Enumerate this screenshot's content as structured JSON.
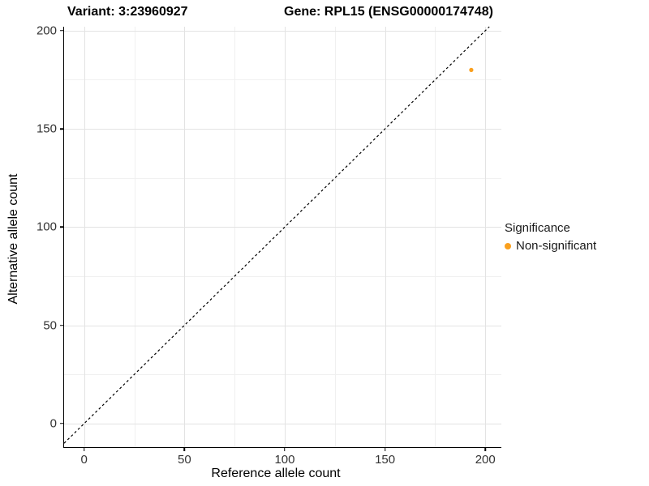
{
  "titles": {
    "variant": "Variant: 3:23960927",
    "gene": "Gene: RPL15 (ENSG00000174748)"
  },
  "chart_data": {
    "type": "scatter",
    "xlabel": "Reference allele count",
    "ylabel": "Alternative allele count",
    "xlim": [
      -10,
      208
    ],
    "ylim": [
      -12,
      202
    ],
    "x_ticks": [
      0,
      50,
      100,
      150,
      200
    ],
    "y_ticks": [
      0,
      50,
      100,
      150,
      200
    ],
    "x_minor_ticks": [
      25,
      75,
      125,
      175
    ],
    "y_minor_ticks": [
      25,
      75,
      125,
      175
    ],
    "grid": true,
    "identity_line": {
      "equation": "y = x",
      "style": "dashed",
      "color": "#000000"
    },
    "series": [
      {
        "name": "Non-significant",
        "color": "#FAA01E",
        "points": [
          {
            "x": 193,
            "y": 180
          }
        ]
      }
    ],
    "legend": {
      "title": "Significance",
      "position": "right",
      "entries": [
        {
          "label": "Non-significant",
          "color": "#FAA01E"
        }
      ]
    },
    "colors": {
      "grid_major": "#E3E3E3",
      "grid_minor": "#F0F0F0",
      "axis_line": "#000000",
      "tick_mark": "#000000",
      "tick_label": "#333333",
      "background": "#FFFFFF"
    }
  }
}
